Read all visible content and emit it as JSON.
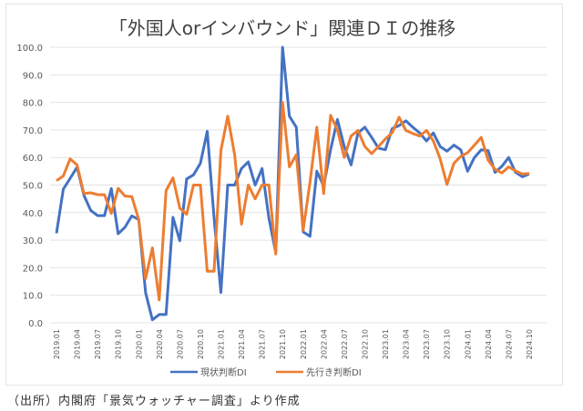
{
  "chart_data": {
    "type": "line",
    "title": "「外国人orインバウンド」関連ＤＩの推移",
    "xlabel": "",
    "ylabel": "",
    "ylim": [
      0,
      100
    ],
    "yticks": [
      "0.0",
      "10.0",
      "20.0",
      "30.0",
      "40.0",
      "50.0",
      "60.0",
      "70.0",
      "80.0",
      "90.0",
      "100.0"
    ],
    "grid": true,
    "legend_placement": "bottom",
    "x_start": "2019.01",
    "x_end": "2024.10",
    "xtick_labels": [
      "2019.01",
      "2019.04",
      "2019.07",
      "2019.10",
      "2020.01",
      "2020.04",
      "2020.07",
      "2020.10",
      "2021.01",
      "2021.04",
      "2021.07",
      "2021.10",
      "2022.01",
      "2022.04",
      "2022.07",
      "2022.10",
      "2023.01",
      "2023.04",
      "2023.07",
      "2023.10",
      "2024.01",
      "2024.04",
      "2024.07",
      "2024.10"
    ],
    "series": [
      {
        "name": "現状判断DI",
        "color": "#4472c4",
        "values": [
          32.5,
          48.5,
          52.4,
          56.5,
          46.3,
          40.8,
          38.9,
          38.9,
          48.7,
          32.3,
          34.7,
          38.8,
          37.5,
          11.0,
          1.1,
          3.0,
          3.0,
          38.3,
          29.8,
          52.2,
          53.7,
          57.9,
          69.5,
          38.0,
          11.0,
          50.0,
          50.0,
          56.0,
          58.4,
          50.0,
          56.0,
          38.0,
          25.5,
          100.0,
          75.0,
          71.0,
          33.0,
          31.4,
          55.0,
          49.6,
          62.8,
          73.8,
          64.0,
          57.3,
          68.9,
          71.0,
          67.3,
          63.4,
          62.8,
          70.5,
          71.6,
          73.3,
          71.0,
          68.9,
          66.0,
          68.9,
          64.0,
          62.3,
          64.5,
          62.8,
          55.0,
          60.0,
          62.8,
          62.5,
          54.6,
          56.8,
          60.0,
          54.6,
          53.0,
          54.0
        ]
      },
      {
        "name": "先行き判断DI",
        "color": "#ed7d31",
        "values": [
          51.6,
          53.3,
          59.5,
          57.3,
          46.9,
          47.2,
          46.5,
          46.5,
          39.7,
          48.8,
          46.0,
          45.8,
          37.5,
          16.0,
          27.2,
          8.3,
          48.0,
          52.6,
          41.6,
          39.4,
          50.0,
          50.0,
          18.7,
          18.7,
          62.5,
          75.0,
          61.0,
          35.8,
          50.0,
          45.0,
          50.0,
          50.0,
          25.0,
          80.0,
          56.6,
          61.0,
          33.6,
          51.0,
          71.0,
          46.9,
          75.3,
          70.0,
          60.0,
          67.8,
          69.8,
          64.0,
          61.4,
          64.0,
          66.7,
          69.0,
          74.6,
          69.8,
          68.7,
          67.8,
          69.8,
          66.0,
          59.5,
          50.2,
          57.9,
          60.4,
          61.7,
          64.5,
          67.3,
          59.0,
          55.7,
          54.4,
          56.6,
          55.1,
          54.0,
          54.2
        ]
      }
    ]
  },
  "source_note": "（出所）内閣府「景気ウォッチャー調査」より作成"
}
